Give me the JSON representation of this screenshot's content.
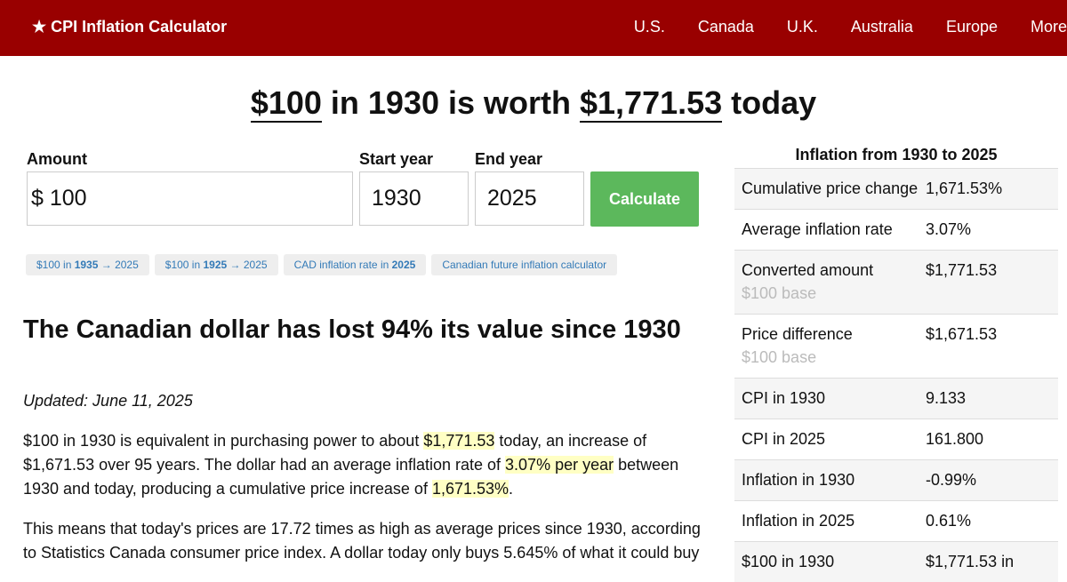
{
  "nav": {
    "brand": "★ CPI Inflation Calculator",
    "links": [
      "U.S.",
      "Canada",
      "U.K.",
      "Australia",
      "Europe",
      "More"
    ]
  },
  "headline": {
    "parts": [
      "$100",
      " in 1930 is worth ",
      "$1,771.53",
      " today"
    ]
  },
  "form": {
    "amount_label": "Amount",
    "currency": "$",
    "amount": "100",
    "start_label": "Start year",
    "start": "1930",
    "end_label": "End year",
    "end": "2025",
    "button": "Calculate"
  },
  "chips": [
    [
      "$100 in ",
      "1935",
      " → 2025"
    ],
    [
      "$100 in ",
      "1925",
      " → 2025"
    ],
    [
      "CAD inflation rate in ",
      "2025"
    ],
    [
      "Canadian future inflation calculator"
    ]
  ],
  "article": {
    "heading": "The Canadian dollar has lost 94% its value since 1930",
    "updated": "Updated: June 11, 2025",
    "paragraphs": [
      [
        "$100 in 1930 is equivalent in purchasing power to about ",
        "$1,771.53",
        " today, an increase of $1,671.53 over 95 years. The dollar had an average inflation rate of ",
        "3.07% per year",
        " between 1930 and today, producing a cumulative price increase of ",
        "1,671.53%",
        "."
      ],
      [
        "This means that today's prices are 17.72 times as high as average prices since 1930, according to Statistics Canada consumer price index. A dollar today only buys 5.645% of what it could buy"
      ]
    ]
  },
  "sidebar": {
    "title": "Inflation from 1930 to 2025",
    "rows": [
      {
        "label": "Cumulative price change",
        "value": "1,671.53%"
      },
      {
        "label": "Average inflation rate",
        "value": "3.07%"
      },
      {
        "label": "Converted amount",
        "note": "$100 base",
        "value": "$1,771.53"
      },
      {
        "label": "Price difference",
        "note": "$100 base",
        "value": "$1,671.53"
      },
      {
        "label": "CPI in 1930",
        "value": "9.133"
      },
      {
        "label": "CPI in 2025",
        "value": "161.800"
      },
      {
        "label": "Inflation in 1930",
        "value": "-0.99%"
      },
      {
        "label": "Inflation in 2025",
        "value": "0.61%"
      },
      {
        "label": "$100 in 1930",
        "value": "$1,771.53 in"
      }
    ]
  }
}
